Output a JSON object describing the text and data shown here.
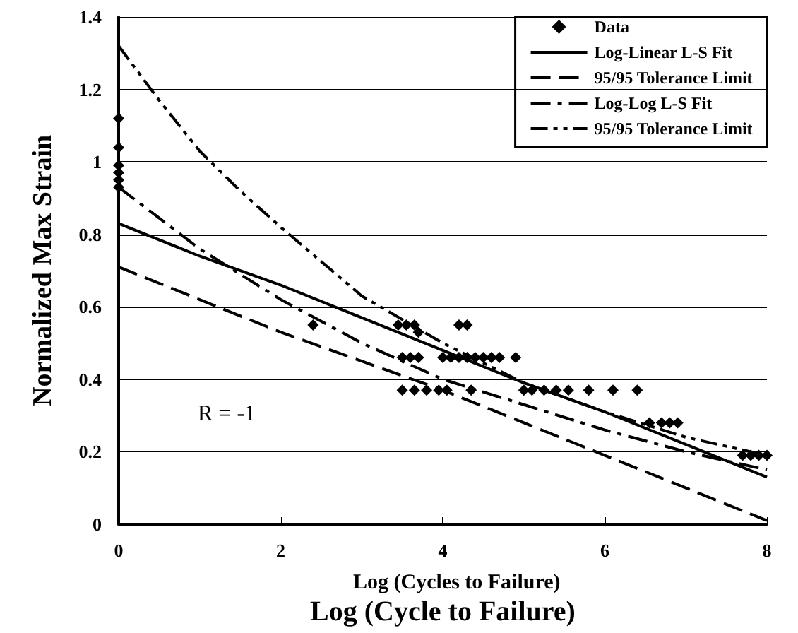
{
  "chart_data": {
    "type": "line",
    "xlabel": "Log (Cycle to Failure)",
    "ylabel": "Normalized Max Strain",
    "annotations": [
      "R = -1",
      "Log (Cycles to Failure)"
    ],
    "xlim": [
      0,
      8
    ],
    "xticks": [
      0,
      2,
      4,
      6,
      8
    ],
    "ylim": [
      0,
      1.4
    ],
    "yticks": [
      0,
      0.2,
      0.4,
      0.6,
      0.8,
      1,
      1.2,
      1.4
    ],
    "grid": "y",
    "legend": "top right",
    "series": [
      {
        "name": "Data",
        "type": "scatter",
        "marker": "diamond",
        "color": "#000000",
        "x": [
          0,
          0,
          0,
          0,
          0,
          0,
          2.4,
          3.45,
          3.55,
          3.65,
          3.7,
          3.5,
          3.6,
          3.7,
          3.5,
          3.65,
          3.8,
          3.95,
          4.05,
          4.35,
          4.2,
          4.3,
          4.0,
          4.1,
          4.2,
          4.3,
          4.4,
          4.5,
          4.6,
          4.7,
          4.9,
          5.0,
          5.1,
          5.25,
          5.4,
          5.55,
          5.8,
          6.1,
          6.4,
          6.55,
          6.7,
          6.8,
          6.9,
          7.7,
          7.8,
          7.9,
          8.0
        ],
        "values": [
          1.12,
          1.04,
          0.99,
          0.97,
          0.95,
          0.93,
          0.55,
          0.55,
          0.55,
          0.55,
          0.53,
          0.46,
          0.46,
          0.46,
          0.37,
          0.37,
          0.37,
          0.37,
          0.37,
          0.37,
          0.55,
          0.55,
          0.46,
          0.46,
          0.46,
          0.46,
          0.46,
          0.46,
          0.46,
          0.46,
          0.46,
          0.37,
          0.37,
          0.37,
          0.37,
          0.37,
          0.37,
          0.37,
          0.37,
          0.28,
          0.28,
          0.28,
          0.28,
          0.19,
          0.19,
          0.19,
          0.19
        ]
      },
      {
        "name": "Log-Linear L-S Fit",
        "type": "line",
        "marker": "none",
        "line_style": "solid",
        "color": "#000000",
        "x": [
          0,
          1,
          2,
          3,
          4,
          5,
          6,
          7,
          8
        ],
        "values": [
          0.83,
          0.74,
          0.66,
          0.57,
          0.48,
          0.39,
          0.31,
          0.22,
          0.13
        ]
      },
      {
        "name": "95/95 Tolerance Limit",
        "type": "line",
        "marker": "none",
        "line_style": "dashed",
        "color": "#000000",
        "x": [
          0,
          1,
          2,
          3,
          4,
          5,
          6,
          7,
          8
        ],
        "values": [
          0.71,
          0.62,
          0.53,
          0.45,
          0.37,
          0.28,
          0.19,
          0.1,
          0.01
        ]
      },
      {
        "name": "Log-Log L-S Fit",
        "type": "line",
        "marker": "none",
        "line_style": "dashdot",
        "color": "#000000",
        "x": [
          0,
          1,
          2,
          3,
          4,
          5,
          6,
          7,
          8
        ],
        "values": [
          0.93,
          0.76,
          0.62,
          0.5,
          0.4,
          0.33,
          0.26,
          0.2,
          0.15
        ]
      },
      {
        "name": "95/95 Tolerance Limit",
        "type": "line",
        "marker": "none",
        "line_style": "dashdotdot",
        "color": "#000000",
        "x": [
          0,
          0.5,
          1,
          1.5,
          2,
          3,
          4,
          5,
          6,
          7,
          8
        ],
        "values": [
          1.32,
          1.17,
          1.03,
          0.92,
          0.82,
          0.63,
          0.5,
          0.39,
          0.31,
          0.24,
          0.19
        ]
      }
    ]
  }
}
